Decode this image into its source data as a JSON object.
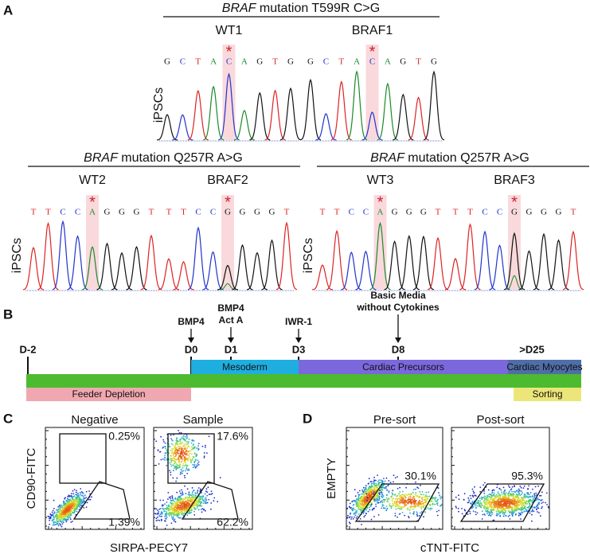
{
  "panel_labels": [
    "A",
    "B",
    "C",
    "D"
  ],
  "panel_a": {
    "groups": [
      {
        "gene": "BRAF",
        "title": " mutation T599R C>G",
        "y_label": "iPSCs",
        "marker": "*",
        "samples": [
          {
            "name": "WT1",
            "sequence": [
              "G",
              "C",
              "T",
              "A",
              "C",
              "A",
              "G",
              "T",
              "G"
            ]
          },
          {
            "name": "BRAF1",
            "sequence": [
              "G",
              "C",
              "T",
              "A",
              "C",
              "A",
              "G",
              "T",
              "G"
            ]
          }
        ]
      },
      {
        "gene": "BRAF",
        "title": " mutation Q257R A>G",
        "y_label": "iPSCs",
        "marker": "*",
        "samples": [
          {
            "name": "WT2",
            "sequence": [
              "T",
              "T",
              "C",
              "C",
              "A",
              "G",
              "G",
              "G",
              "T"
            ]
          },
          {
            "name": "BRAF2",
            "sequence": [
              "T",
              "T",
              "C",
              "C",
              "G",
              "G",
              "G",
              "G",
              "T"
            ]
          }
        ]
      },
      {
        "gene": "BRAF",
        "title": " mutation Q257R A>G",
        "y_label": "iPSCs",
        "marker": "*",
        "samples": [
          {
            "name": "WT3",
            "sequence": [
              "T",
              "T",
              "C",
              "C",
              "A",
              "G",
              "G",
              "G",
              "T"
            ]
          },
          {
            "name": "BRAF3",
            "sequence": [
              "T",
              "T",
              "C",
              "C",
              "G",
              "G",
              "G",
              "G",
              "T"
            ]
          }
        ]
      }
    ]
  },
  "panel_b": {
    "days": [
      "D-2",
      "D0",
      "D1",
      "D3",
      "D8",
      ">D25"
    ],
    "treatments": [
      {
        "lines": [
          "BMP4"
        ]
      },
      {
        "lines": [
          "BMP4",
          "Act A"
        ]
      },
      {
        "lines": [
          "IWR-1"
        ]
      },
      {
        "lines": [
          "Basic Media",
          "without Cytokines"
        ]
      }
    ],
    "stages": [
      "Mesoderm",
      "Cardiac Precursors",
      "Cardiac Myocytes"
    ],
    "bottom": [
      "Feeder Depletion",
      "Sorting"
    ]
  },
  "panel_c": {
    "y_label": "CD90-FITC",
    "x_label": "SIRPA-PECY7",
    "plots": [
      {
        "title": "Negative",
        "upper": "0.25%",
        "lower": "1.39%"
      },
      {
        "title": "Sample",
        "upper": "17.6%",
        "lower": "62.2%"
      }
    ]
  },
  "panel_d": {
    "y_label": "EMPTY",
    "x_label": "cTNT-FITC",
    "plots": [
      {
        "title": "Pre-sort",
        "gate": "30.1%"
      },
      {
        "title": "Post-sort",
        "gate": "95.3%"
      }
    ]
  }
}
